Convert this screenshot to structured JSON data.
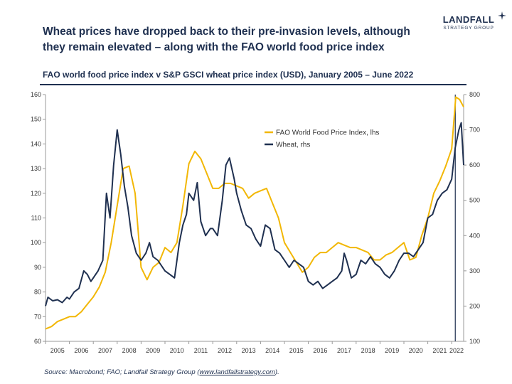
{
  "header": {
    "title": "Wheat prices have dropped back to their pre-invasion levels, although they remain elevated – along with the FAO world food price index",
    "brand_name": "LANDFALL",
    "brand_sub": "STRATEGY GROUP"
  },
  "subtitle": "FAO world food price index v S&P GSCI wheat price index (USD), January 2005 – June 2022",
  "source": {
    "prefix": "Source: Macrobond; FAO; Landfall Strategy Group (",
    "link": "www.landfallstrategy.com",
    "suffix": ")."
  },
  "colors": {
    "fao": "#f2b705",
    "wheat": "#1f3050",
    "axis": "#999999"
  },
  "chart_data": {
    "type": "line",
    "x_tick_labels": [
      "2005",
      "2006",
      "2007",
      "2008",
      "2009",
      "2010",
      "2011",
      "2012",
      "2013",
      "2014",
      "2015",
      "2016",
      "2017",
      "2018",
      "2019",
      "2020",
      "2021",
      "2022"
    ],
    "x_range": [
      2005.0,
      2022.5
    ],
    "ylim_left": [
      60,
      160
    ],
    "ylim_right": [
      100,
      800
    ],
    "y_ticks_left": [
      60,
      70,
      80,
      90,
      100,
      110,
      120,
      130,
      140,
      150,
      160
    ],
    "y_ticks_right": [
      100,
      200,
      300,
      400,
      500,
      600,
      700,
      800
    ],
    "grid": false,
    "legend_position": "upper-center",
    "reference_line_x": 2022.15,
    "series": [
      {
        "name": "FAO World Food Price Index, lhs",
        "axis": "left",
        "points": [
          [
            2005.0,
            65
          ],
          [
            2005.25,
            66
          ],
          [
            2005.5,
            68
          ],
          [
            2005.75,
            69
          ],
          [
            2006.0,
            70
          ],
          [
            2006.25,
            70
          ],
          [
            2006.5,
            72
          ],
          [
            2006.75,
            75
          ],
          [
            2007.0,
            78
          ],
          [
            2007.25,
            82
          ],
          [
            2007.5,
            88
          ],
          [
            2007.75,
            100
          ],
          [
            2008.0,
            115
          ],
          [
            2008.25,
            130
          ],
          [
            2008.5,
            131
          ],
          [
            2008.75,
            120
          ],
          [
            2009.0,
            90
          ],
          [
            2009.25,
            85
          ],
          [
            2009.5,
            90
          ],
          [
            2009.75,
            92
          ],
          [
            2010.0,
            98
          ],
          [
            2010.25,
            96
          ],
          [
            2010.5,
            100
          ],
          [
            2010.75,
            115
          ],
          [
            2011.0,
            132
          ],
          [
            2011.25,
            137
          ],
          [
            2011.5,
            134
          ],
          [
            2011.75,
            128
          ],
          [
            2012.0,
            122
          ],
          [
            2012.25,
            122
          ],
          [
            2012.5,
            124
          ],
          [
            2012.75,
            124
          ],
          [
            2013.0,
            123
          ],
          [
            2013.25,
            122
          ],
          [
            2013.5,
            118
          ],
          [
            2013.75,
            120
          ],
          [
            2014.0,
            121
          ],
          [
            2014.25,
            122
          ],
          [
            2014.5,
            116
          ],
          [
            2014.75,
            110
          ],
          [
            2015.0,
            100
          ],
          [
            2015.25,
            96
          ],
          [
            2015.5,
            92
          ],
          [
            2015.75,
            88
          ],
          [
            2016.0,
            90
          ],
          [
            2016.25,
            94
          ],
          [
            2016.5,
            96
          ],
          [
            2016.75,
            96
          ],
          [
            2017.0,
            98
          ],
          [
            2017.25,
            100
          ],
          [
            2017.5,
            99
          ],
          [
            2017.75,
            98
          ],
          [
            2018.0,
            98
          ],
          [
            2018.25,
            97
          ],
          [
            2018.5,
            96
          ],
          [
            2018.75,
            93
          ],
          [
            2019.0,
            93
          ],
          [
            2019.25,
            95
          ],
          [
            2019.5,
            96
          ],
          [
            2019.75,
            98
          ],
          [
            2020.0,
            100
          ],
          [
            2020.25,
            93
          ],
          [
            2020.5,
            94
          ],
          [
            2020.75,
            103
          ],
          [
            2021.0,
            110
          ],
          [
            2021.25,
            120
          ],
          [
            2021.5,
            125
          ],
          [
            2021.75,
            131
          ],
          [
            2022.0,
            138
          ],
          [
            2022.17,
            159
          ],
          [
            2022.33,
            158
          ],
          [
            2022.5,
            155
          ]
        ]
      },
      {
        "name": "Wheat, rhs",
        "axis": "right",
        "points": [
          [
            2005.0,
            200
          ],
          [
            2005.1,
            225
          ],
          [
            2005.3,
            215
          ],
          [
            2005.5,
            218
          ],
          [
            2005.7,
            210
          ],
          [
            2005.9,
            225
          ],
          [
            2006.0,
            220
          ],
          [
            2006.2,
            240
          ],
          [
            2006.4,
            250
          ],
          [
            2006.6,
            300
          ],
          [
            2006.75,
            290
          ],
          [
            2006.9,
            270
          ],
          [
            2007.0,
            280
          ],
          [
            2007.2,
            300
          ],
          [
            2007.4,
            330
          ],
          [
            2007.55,
            520
          ],
          [
            2007.7,
            450
          ],
          [
            2007.85,
            600
          ],
          [
            2008.0,
            700
          ],
          [
            2008.15,
            630
          ],
          [
            2008.3,
            540
          ],
          [
            2008.45,
            480
          ],
          [
            2008.6,
            400
          ],
          [
            2008.8,
            350
          ],
          [
            2009.0,
            330
          ],
          [
            2009.2,
            350
          ],
          [
            2009.35,
            380
          ],
          [
            2009.5,
            340
          ],
          [
            2009.7,
            330
          ],
          [
            2009.9,
            310
          ],
          [
            2010.0,
            300
          ],
          [
            2010.2,
            290
          ],
          [
            2010.4,
            280
          ],
          [
            2010.6,
            380
          ],
          [
            2010.75,
            430
          ],
          [
            2010.9,
            460
          ],
          [
            2011.0,
            520
          ],
          [
            2011.2,
            500
          ],
          [
            2011.35,
            550
          ],
          [
            2011.5,
            440
          ],
          [
            2011.7,
            400
          ],
          [
            2011.9,
            420
          ],
          [
            2012.0,
            420
          ],
          [
            2012.2,
            400
          ],
          [
            2012.4,
            500
          ],
          [
            2012.55,
            600
          ],
          [
            2012.7,
            620
          ],
          [
            2012.9,
            560
          ],
          [
            2013.0,
            520
          ],
          [
            2013.2,
            470
          ],
          [
            2013.4,
            430
          ],
          [
            2013.6,
            420
          ],
          [
            2013.8,
            390
          ],
          [
            2014.0,
            370
          ],
          [
            2014.2,
            430
          ],
          [
            2014.4,
            420
          ],
          [
            2014.6,
            360
          ],
          [
            2014.8,
            350
          ],
          [
            2015.0,
            330
          ],
          [
            2015.2,
            310
          ],
          [
            2015.4,
            330
          ],
          [
            2015.6,
            320
          ],
          [
            2015.8,
            310
          ],
          [
            2016.0,
            270
          ],
          [
            2016.2,
            260
          ],
          [
            2016.4,
            270
          ],
          [
            2016.6,
            250
          ],
          [
            2016.8,
            260
          ],
          [
            2017.0,
            270
          ],
          [
            2017.2,
            280
          ],
          [
            2017.4,
            300
          ],
          [
            2017.5,
            350
          ],
          [
            2017.6,
            330
          ],
          [
            2017.8,
            280
          ],
          [
            2018.0,
            290
          ],
          [
            2018.2,
            330
          ],
          [
            2018.4,
            320
          ],
          [
            2018.6,
            340
          ],
          [
            2018.8,
            320
          ],
          [
            2019.0,
            310
          ],
          [
            2019.2,
            290
          ],
          [
            2019.4,
            280
          ],
          [
            2019.6,
            300
          ],
          [
            2019.8,
            330
          ],
          [
            2020.0,
            350
          ],
          [
            2020.2,
            350
          ],
          [
            2020.4,
            340
          ],
          [
            2020.6,
            360
          ],
          [
            2020.8,
            380
          ],
          [
            2021.0,
            450
          ],
          [
            2021.2,
            460
          ],
          [
            2021.4,
            500
          ],
          [
            2021.6,
            520
          ],
          [
            2021.8,
            530
          ],
          [
            2022.0,
            560
          ],
          [
            2022.15,
            650
          ],
          [
            2022.3,
            700
          ],
          [
            2022.4,
            720
          ],
          [
            2022.5,
            600
          ]
        ]
      }
    ]
  }
}
